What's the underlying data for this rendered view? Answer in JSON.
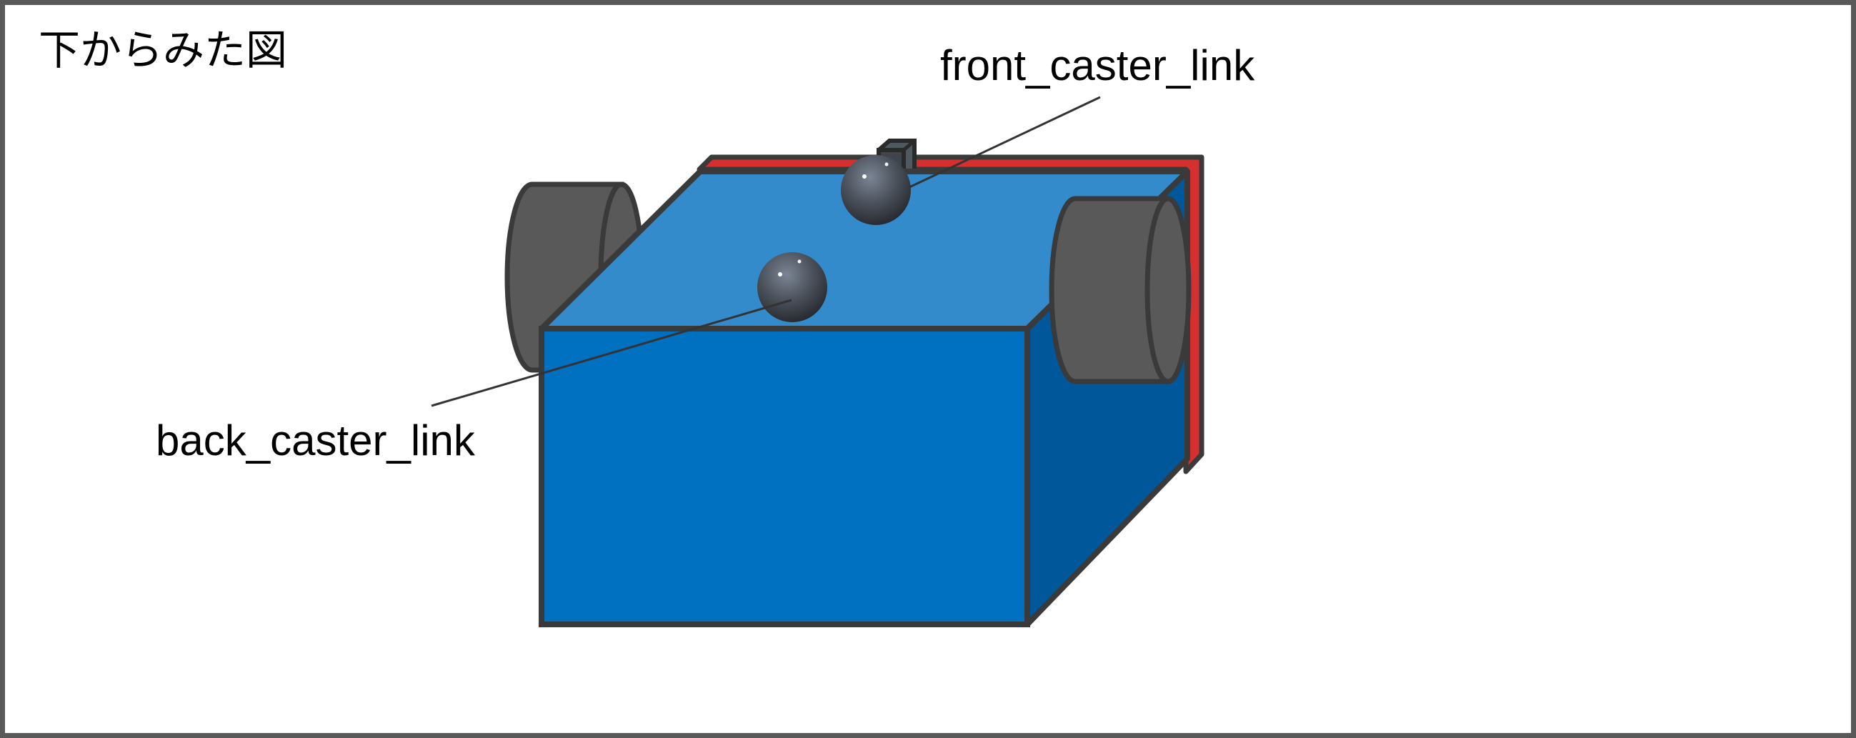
{
  "title": "下からみた図",
  "labels": {
    "front_caster": "front_caster_link",
    "back_caster": "back_caster_link"
  },
  "colors": {
    "frame_border": "#595959",
    "body_front": "#0070c0",
    "body_top": "#348bcb",
    "body_side": "#00579a",
    "plate": "#d62f2f",
    "wheel": "#595959",
    "outline": "#3a3a3a"
  }
}
